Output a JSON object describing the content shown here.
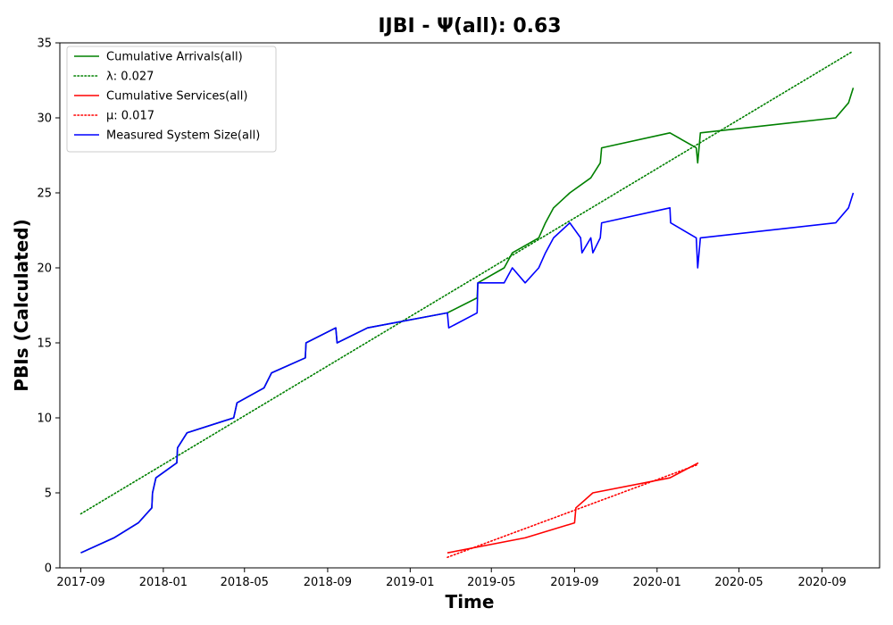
{
  "chart_data": {
    "type": "line",
    "title": "IJBI -  Ψ(all): 0.63",
    "xlabel": "Time",
    "ylabel": "PBIs (Calculated)",
    "xlim": [
      "2017-08-01",
      "2020-11-25"
    ],
    "ylim": [
      0,
      35
    ],
    "x_ticks": [
      "2017-09",
      "2018-01",
      "2018-05",
      "2018-09",
      "2019-01",
      "2019-05",
      "2019-09",
      "2020-01",
      "2020-05",
      "2020-09"
    ],
    "y_ticks": [
      0,
      5,
      10,
      15,
      20,
      25,
      30,
      35
    ],
    "legend_position": "top-left",
    "series": [
      {
        "name": "Cumulative Arrivals(all)",
        "color": "#008000",
        "style": "solid",
        "points": [
          [
            "2017-09-01",
            1
          ],
          [
            "2017-10-20",
            2
          ],
          [
            "2017-11-25",
            3
          ],
          [
            "2017-12-15",
            4
          ],
          [
            "2017-12-16",
            5
          ],
          [
            "2017-12-21",
            6
          ],
          [
            "2018-01-21",
            7
          ],
          [
            "2018-01-22",
            8
          ],
          [
            "2018-02-05",
            9
          ],
          [
            "2018-04-15",
            10
          ],
          [
            "2018-04-20",
            11
          ],
          [
            "2018-05-30",
            12
          ],
          [
            "2018-06-10",
            13
          ],
          [
            "2018-07-30",
            14
          ],
          [
            "2018-07-31",
            15
          ],
          [
            "2018-09-13",
            16
          ],
          [
            "2018-09-15",
            15
          ],
          [
            "2018-10-30",
            16
          ],
          [
            "2019-02-25",
            17
          ],
          [
            "2019-04-10",
            18
          ],
          [
            "2019-04-11",
            19
          ],
          [
            "2019-05-20",
            20
          ],
          [
            "2019-06-01",
            21
          ],
          [
            "2019-07-10",
            22
          ],
          [
            "2019-07-20",
            23
          ],
          [
            "2019-08-01",
            24
          ],
          [
            "2019-08-25",
            25
          ],
          [
            "2019-09-25",
            26
          ],
          [
            "2019-10-09",
            27
          ],
          [
            "2019-10-11",
            28
          ],
          [
            "2020-01-20",
            29
          ],
          [
            "2020-02-28",
            28
          ],
          [
            "2020-03-01",
            27
          ],
          [
            "2020-03-05",
            29
          ],
          [
            "2020-09-21",
            30
          ],
          [
            "2020-10-10",
            31
          ],
          [
            "2020-10-17",
            32
          ]
        ]
      },
      {
        "name": "λ: 0.027",
        "color": "#008000",
        "style": "dotted",
        "points": [
          [
            "2017-09-01",
            3.6
          ],
          [
            "2020-10-15",
            34.4
          ]
        ]
      },
      {
        "name": "Cumulative Services(all)",
        "color": "#ff0000",
        "style": "solid",
        "points": [
          [
            "2019-02-25",
            1
          ],
          [
            "2019-06-20",
            2
          ],
          [
            "2019-09-01",
            3
          ],
          [
            "2019-09-03",
            4
          ],
          [
            "2019-09-28",
            5
          ],
          [
            "2020-01-20",
            6
          ],
          [
            "2020-03-02",
            7
          ]
        ]
      },
      {
        "name": "μ: 0.017",
        "color": "#ff0000",
        "style": "dotted",
        "points": [
          [
            "2019-02-25",
            0.7
          ],
          [
            "2020-03-02",
            6.9
          ]
        ]
      },
      {
        "name": "Measured System Size(all)",
        "color": "#0000ff",
        "style": "solid",
        "points": [
          [
            "2017-09-01",
            1
          ],
          [
            "2017-10-20",
            2
          ],
          [
            "2017-11-25",
            3
          ],
          [
            "2017-12-15",
            4
          ],
          [
            "2017-12-16",
            5
          ],
          [
            "2017-12-21",
            6
          ],
          [
            "2018-01-21",
            7
          ],
          [
            "2018-01-22",
            8
          ],
          [
            "2018-02-05",
            9
          ],
          [
            "2018-04-15",
            10
          ],
          [
            "2018-04-20",
            11
          ],
          [
            "2018-05-30",
            12
          ],
          [
            "2018-06-10",
            13
          ],
          [
            "2018-07-30",
            14
          ],
          [
            "2018-07-31",
            15
          ],
          [
            "2018-09-13",
            16
          ],
          [
            "2018-09-15",
            15
          ],
          [
            "2018-10-30",
            16
          ],
          [
            "2019-02-25",
            17
          ],
          [
            "2019-02-27",
            16
          ],
          [
            "2019-04-10",
            17
          ],
          [
            "2019-04-11",
            19
          ],
          [
            "2019-05-20",
            19
          ],
          [
            "2019-06-01",
            20
          ],
          [
            "2019-06-20",
            19
          ],
          [
            "2019-07-10",
            20
          ],
          [
            "2019-07-20",
            21
          ],
          [
            "2019-08-01",
            22
          ],
          [
            "2019-08-25",
            23
          ],
          [
            "2019-09-10",
            22
          ],
          [
            "2019-09-12",
            21
          ],
          [
            "2019-09-25",
            22
          ],
          [
            "2019-09-28",
            21
          ],
          [
            "2019-10-09",
            22
          ],
          [
            "2019-10-11",
            23
          ],
          [
            "2020-01-20",
            24
          ],
          [
            "2020-01-21",
            23
          ],
          [
            "2020-02-28",
            22
          ],
          [
            "2020-03-01",
            20
          ],
          [
            "2020-03-05",
            22
          ],
          [
            "2020-09-21",
            23
          ],
          [
            "2020-10-10",
            24
          ],
          [
            "2020-10-17",
            25
          ]
        ]
      }
    ]
  }
}
